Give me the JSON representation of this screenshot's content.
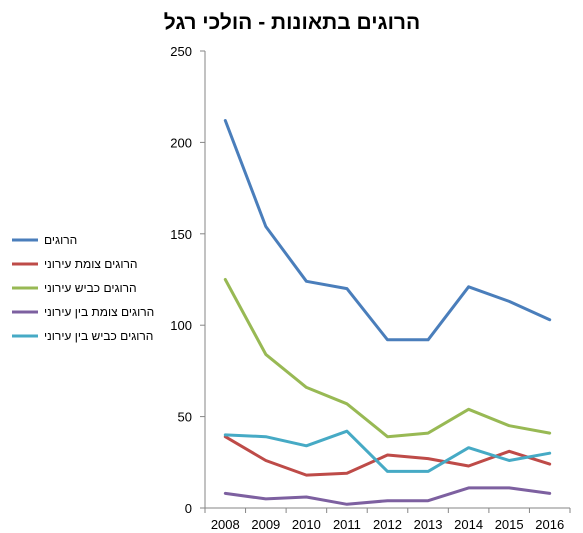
{
  "chart_data": {
    "type": "line",
    "title": "הרוגים בתאונות - הולכי רגל",
    "xlabel": "",
    "ylabel": "",
    "x": [
      "2008",
      "2009",
      "2010",
      "2011",
      "2012",
      "2013",
      "2014",
      "2015",
      "2016"
    ],
    "ylim": [
      0,
      250
    ],
    "yticks": [
      "0",
      "50",
      "100",
      "150",
      "200",
      "250"
    ],
    "grid": false,
    "legend_position": "left",
    "series": [
      {
        "name": "הרוגים",
        "color": "#4a7ebb",
        "values": [
          212,
          154,
          124,
          120,
          92,
          92,
          121,
          113,
          103
        ]
      },
      {
        "name": "הרוגים  צומת עירוני",
        "color": "#be4b48",
        "values": [
          39,
          26,
          18,
          19,
          29,
          27,
          23,
          31,
          24
        ]
      },
      {
        "name": "הרוגים כביש עירוני",
        "color": "#98b954",
        "values": [
          125,
          84,
          66,
          57,
          39,
          41,
          54,
          45,
          41
        ]
      },
      {
        "name": "הרוגים צומת בין עירוני",
        "color": "#7d60a0",
        "values": [
          8,
          5,
          6,
          2,
          4,
          4,
          11,
          11,
          8
        ]
      },
      {
        "name": "הרוגים כביש בין עירוני",
        "color": "#46aac5",
        "values": [
          40,
          39,
          34,
          42,
          20,
          20,
          33,
          26,
          30
        ]
      }
    ]
  }
}
